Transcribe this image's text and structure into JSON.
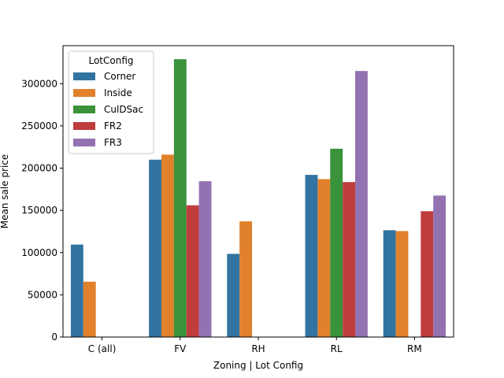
{
  "chart_data": {
    "type": "bar",
    "title": "",
    "xlabel": "Zoning | Lot Config",
    "ylabel": "Mean sale price",
    "categories": [
      "C (all)",
      "FV",
      "RH",
      "RL",
      "RM"
    ],
    "ylim": [
      0,
      345000
    ],
    "yticks": [
      0,
      50000,
      100000,
      150000,
      200000,
      250000,
      300000
    ],
    "ytick_labels": [
      "0",
      "50000",
      "100000",
      "150000",
      "200000",
      "250000",
      "300000"
    ],
    "grid": false,
    "legend": {
      "title": "LotConfig",
      "placement": "upper-left"
    },
    "series": [
      {
        "name": "Corner",
        "color": "#3274a1",
        "values": [
          109500,
          210000,
          98500,
          192000,
          126500
        ]
      },
      {
        "name": "Inside",
        "color": "#e1812c",
        "values": [
          65500,
          216000,
          137000,
          187000,
          125500
        ]
      },
      {
        "name": "CulDSac",
        "color": "#3a923a",
        "values": [
          null,
          329000,
          null,
          223000,
          null
        ]
      },
      {
        "name": "FR2",
        "color": "#c03d3e",
        "values": [
          null,
          156000,
          null,
          183500,
          149000
        ]
      },
      {
        "name": "FR3",
        "color": "#9372b2",
        "values": [
          null,
          184500,
          null,
          315000,
          167500
        ]
      }
    ]
  }
}
